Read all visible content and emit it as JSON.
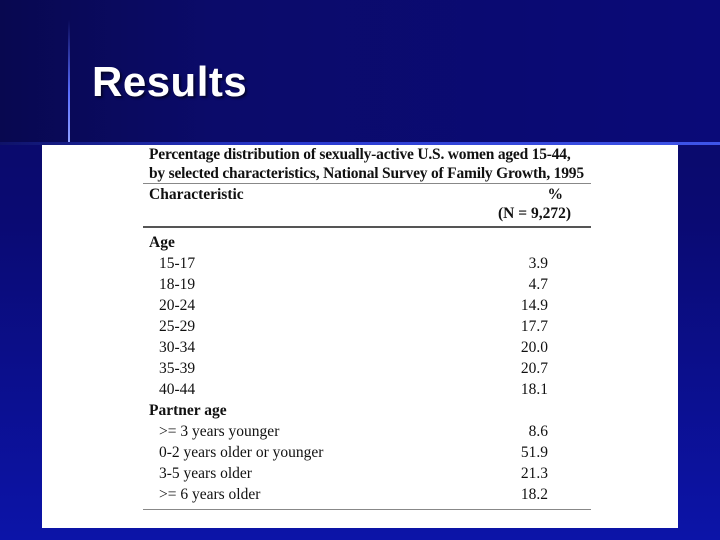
{
  "slide": {
    "title": "Results"
  },
  "table": {
    "caption_line1": "Percentage distribution of sexually-active U.S. women aged 15-44,",
    "caption_line2": "by selected characteristics, National Survey of Family Growth, 1995",
    "col_characteristic": "Characteristic",
    "col_percent": "%",
    "col_n": "(N = 9,272)",
    "groups": [
      {
        "label": "Age",
        "rows": [
          {
            "label": "15-17",
            "value": "3.9"
          },
          {
            "label": "18-19",
            "value": "4.7"
          },
          {
            "label": "20-24",
            "value": "14.9"
          },
          {
            "label": "25-29",
            "value": "17.7"
          },
          {
            "label": "30-34",
            "value": "20.0"
          },
          {
            "label": "35-39",
            "value": "20.7"
          },
          {
            "label": "40-44",
            "value": "18.1"
          }
        ]
      },
      {
        "label": "Partner age",
        "rows": [
          {
            "label": ">= 3 years younger",
            "value": "8.6"
          },
          {
            "label": "0-2 years older or younger",
            "value": "51.9"
          },
          {
            "label": "3-5 years older",
            "value": "21.3"
          },
          {
            "label": ">= 6 years older",
            "value": "18.2"
          }
        ]
      }
    ]
  }
}
